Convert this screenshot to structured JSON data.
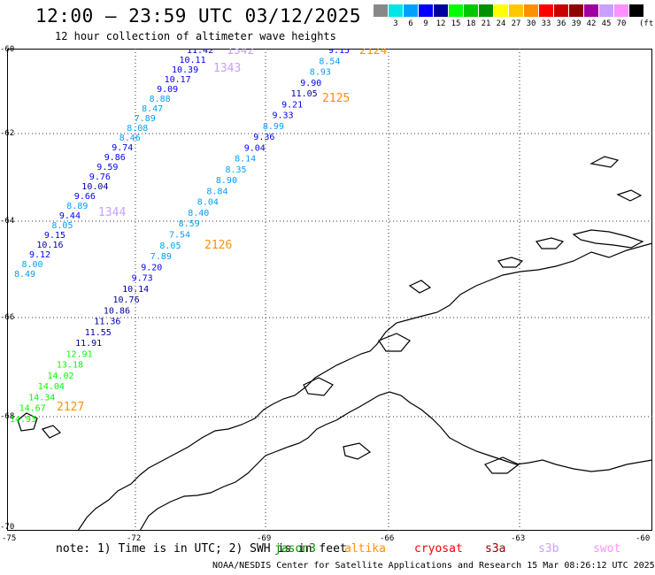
{
  "title": "12:00 – 23:59 UTC 03/12/2025",
  "subtitle": "12 hour collection of altimeter wave heights",
  "color_scale": {
    "unit": "(ft)",
    "swatches": [
      {
        "color": "#888888",
        "label": ""
      },
      {
        "color": "#00e5e5",
        "label": "3"
      },
      {
        "color": "#00a0ff",
        "label": "6"
      },
      {
        "color": "#0000ff",
        "label": "9"
      },
      {
        "color": "#0000a0",
        "label": "12"
      },
      {
        "color": "#00ff00",
        "label": "15"
      },
      {
        "color": "#00c800",
        "label": "18"
      },
      {
        "color": "#009000",
        "label": "21"
      },
      {
        "color": "#ffff00",
        "label": "24"
      },
      {
        "color": "#ffc800",
        "label": "27"
      },
      {
        "color": "#ff9000",
        "label": "30"
      },
      {
        "color": "#ff0000",
        "label": "33"
      },
      {
        "color": "#c80000",
        "label": "36"
      },
      {
        "color": "#900000",
        "label": "39"
      },
      {
        "color": "#a000a0",
        "label": "42"
      },
      {
        "color": "#c8a0ff",
        "label": "45"
      },
      {
        "color": "#ff90ff",
        "label": "70"
      },
      {
        "color": "#000000",
        "label": ""
      }
    ]
  },
  "axes": {
    "lat_labels": [
      "-60",
      "-62",
      "-64",
      "-66",
      "-68",
      "-70"
    ],
    "lon_labels": [
      "-75",
      "-72",
      "-69",
      "-66",
      "-63",
      "-60"
    ]
  },
  "passes": {
    "p1342": {
      "name": "1342",
      "color": "#c8a0ff"
    },
    "p1343": {
      "name": "1343",
      "color": "#c8a0ff"
    },
    "p1344": {
      "name": "1344",
      "color": "#c8a0ff"
    },
    "p2124": {
      "name": "2124",
      "color": "#ff9000"
    },
    "p2125": {
      "name": "2125",
      "color": "#ff9000"
    },
    "p2126": {
      "name": "2126",
      "color": "#ff9000"
    },
    "p2127": {
      "name": "2127",
      "color": "#ff9000"
    }
  },
  "track_left": {
    "values": [
      "11.42",
      "10.11",
      "10.39",
      "10.17",
      "9.09",
      "8.88",
      "8.47",
      "7.89",
      "8.08",
      "8.46",
      "9.74",
      "9.86",
      "9.59",
      "9.76",
      "10.04",
      "9.66",
      "8.89",
      "9.44",
      "8.05",
      "9.15",
      "10.16",
      "9.12",
      "8.00",
      "8.49"
    ],
    "colors": [
      "#0000a0",
      "#0000ff",
      "#0000ff",
      "#0000ff",
      "#0000ff",
      "#00a0ff",
      "#00a0ff",
      "#00a0ff",
      "#00a0ff",
      "#00a0ff",
      "#0000ff",
      "#0000ff",
      "#0000ff",
      "#0000ff",
      "#0000a0",
      "#0000ff",
      "#00a0ff",
      "#0000ff",
      "#00a0ff",
      "#0000ff",
      "#0000a0",
      "#0000ff",
      "#00a0ff",
      "#00a0ff"
    ]
  },
  "track_right": {
    "values": [
      "9.15",
      "8.54",
      "8.93",
      "9.90",
      "11.05",
      "9.21",
      "9.33",
      "8.99",
      "9.36",
      "9.04",
      "8.14",
      "8.35",
      "8.90",
      "8.84",
      "8.04",
      "8.40",
      "8.59",
      "7.54",
      "8.05",
      "7.89",
      "9.20",
      "9.73",
      "10.14",
      "10.76",
      "10.86",
      "11.36",
      "11.55",
      "11.91",
      "12.91",
      "13.18",
      "14.02",
      "14.04",
      "14.34",
      "14.67",
      "14.93"
    ],
    "colors": [
      "#0000ff",
      "#00a0ff",
      "#00a0ff",
      "#0000ff",
      "#0000a0",
      "#0000ff",
      "#0000ff",
      "#00a0ff",
      "#0000ff",
      "#0000ff",
      "#00a0ff",
      "#00a0ff",
      "#00a0ff",
      "#00a0ff",
      "#00a0ff",
      "#00a0ff",
      "#00a0ff",
      "#00a0ff",
      "#00a0ff",
      "#00a0ff",
      "#0000ff",
      "#0000ff",
      "#0000a0",
      "#0000a0",
      "#0000a0",
      "#0000a0",
      "#0000a0",
      "#0000a0",
      "#00ff00",
      "#00ff00",
      "#00ff00",
      "#00ff00",
      "#00ff00",
      "#00ff00",
      "#00ff00"
    ]
  },
  "note": "note: 1) Time is in UTC; 2) SWH is in feet",
  "satellites": [
    {
      "name": "jason3",
      "color": "#009000"
    },
    {
      "name": "altika",
      "color": "#ff9000"
    },
    {
      "name": "cryosat",
      "color": "#ff0000"
    },
    {
      "name": "s3a",
      "color": "#900000"
    },
    {
      "name": "s3b",
      "color": "#c8a0ff"
    },
    {
      "name": "swot",
      "color": "#ff90ff"
    }
  ],
  "footer": "NOAA/NESDIS Center for Satellite Applications and Research   15 Mar 08:26:12 UTC 2025"
}
